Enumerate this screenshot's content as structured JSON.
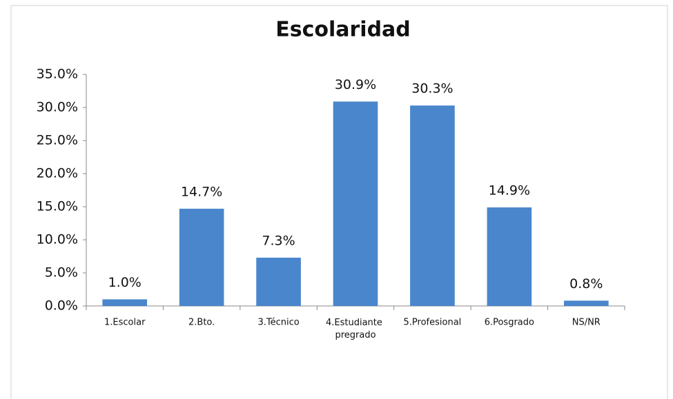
{
  "chart_data": {
    "type": "bar",
    "title": "Escolaridad",
    "categories": [
      "1.Escolar",
      "2.Bto.",
      "3.Técnico",
      "4.Estudiante pregrado",
      "5.Profesional",
      "6.Posgrado",
      "NS/NR"
    ],
    "values": [
      1.0,
      14.7,
      7.3,
      30.9,
      30.3,
      14.9,
      0.8
    ],
    "value_labels": [
      "1.0%",
      "14.7%",
      "7.3%",
      "30.9%",
      "30.3%",
      "14.9%",
      "0.8%"
    ],
    "color": "#4a86cc",
    "ylim": [
      0,
      35
    ],
    "yticks": [
      {
        "value": 0,
        "label": "0.0%"
      },
      {
        "value": 5,
        "label": "5.0%"
      },
      {
        "value": 10,
        "label": "10.0%"
      },
      {
        "value": 15,
        "label": "15.0%"
      },
      {
        "value": 20,
        "label": "20.0%"
      },
      {
        "value": 25,
        "label": "25.0%"
      },
      {
        "value": 30,
        "label": "30.0%"
      },
      {
        "value": 35,
        "label": "35.0%"
      }
    ],
    "grid": false
  }
}
